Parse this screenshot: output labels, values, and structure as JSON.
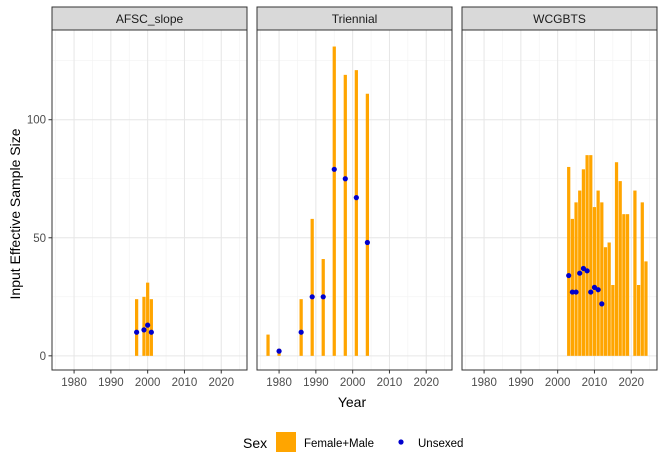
{
  "chart_data": {
    "type": "bar",
    "xlabel": "Year",
    "ylabel": "Input Effective Sample Size",
    "xlim": [
      1974,
      2027
    ],
    "ylim": [
      -6,
      138
    ],
    "x_ticks": [
      1980,
      1990,
      2000,
      2010,
      2020
    ],
    "y_ticks": [
      0,
      50,
      100
    ],
    "grid": true,
    "legend": {
      "title": "Sex",
      "position": "bottom",
      "entries": [
        {
          "name": "Female+Male",
          "kind": "bar",
          "color": "#FFA500"
        },
        {
          "name": "Unsexed",
          "kind": "point",
          "color": "#0000CD"
        }
      ]
    },
    "panels": [
      {
        "name": "AFSC_slope",
        "series": [
          {
            "name": "Female+Male",
            "type": "bar",
            "x": [
              1997,
              1999,
              2000,
              2001
            ],
            "y": [
              24,
              25,
              31,
              24
            ]
          },
          {
            "name": "Unsexed",
            "type": "scatter",
            "x": [
              1997,
              1999,
              2000,
              2001
            ],
            "y": [
              10,
              11,
              13,
              10
            ]
          }
        ]
      },
      {
        "name": "Triennial",
        "series": [
          {
            "name": "Female+Male",
            "type": "bar",
            "x": [
              1977,
              1980,
              1986,
              1989,
              1992,
              1995,
              1998,
              2001,
              2004
            ],
            "y": [
              9,
              3,
              24,
              58,
              41,
              131,
              119,
              121,
              111
            ]
          },
          {
            "name": "Unsexed",
            "type": "scatter",
            "x": [
              1980,
              1986,
              1989,
              1992,
              1995,
              1998,
              2001,
              2004
            ],
            "y": [
              2,
              10,
              25,
              25,
              79,
              75,
              67,
              48
            ]
          }
        ]
      },
      {
        "name": "WCGBTS",
        "series": [
          {
            "name": "Female+Male",
            "type": "bar",
            "x": [
              2003,
              2004,
              2005,
              2006,
              2007,
              2008,
              2009,
              2010,
              2011,
              2012,
              2013,
              2014,
              2015,
              2016,
              2017,
              2018,
              2019,
              2021,
              2022,
              2023,
              2024
            ],
            "y": [
              80,
              58,
              65,
              70,
              79,
              85,
              85,
              63,
              70,
              65,
              46,
              48,
              30,
              82,
              74,
              60,
              60,
              70,
              30,
              65,
              40
            ]
          },
          {
            "name": "Unsexed",
            "type": "scatter",
            "x": [
              2003,
              2004,
              2005,
              2006,
              2007,
              2008,
              2009,
              2010,
              2011,
              2012
            ],
            "y": [
              34,
              27,
              27,
              35,
              37,
              36,
              27,
              29,
              28,
              22
            ]
          }
        ]
      }
    ]
  }
}
